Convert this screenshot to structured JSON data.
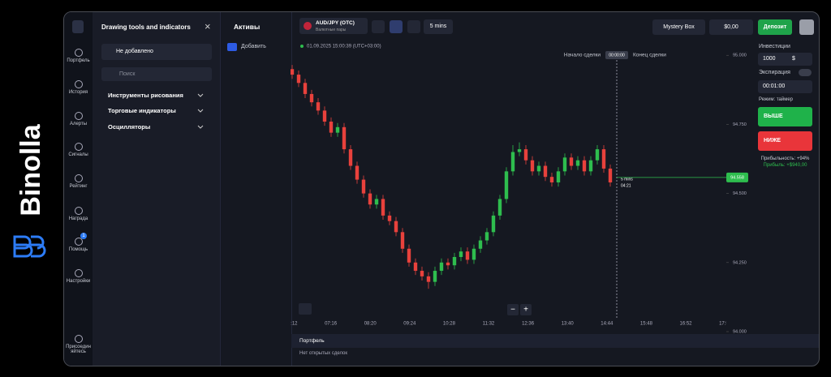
{
  "brand": "Binolla",
  "sidebar": {
    "items": [
      {
        "label": "Портфель"
      },
      {
        "label": "История"
      },
      {
        "label": "Алерты"
      },
      {
        "label": "Сигналы"
      },
      {
        "label": "Рейтинг"
      },
      {
        "label": "Награда"
      },
      {
        "label": "Помощь"
      },
      {
        "label": "Настройки"
      },
      {
        "label": "Присоединяйтесь"
      }
    ],
    "help_badge": 1
  },
  "drawing_panel": {
    "title": "Drawing tools and indicators",
    "close": "×",
    "status": "Не добавлено",
    "search_placeholder": "Поиск",
    "sections": [
      "Инструменты рисования",
      "Торговые индикаторы",
      "Осцилляторы"
    ]
  },
  "assets_panel": {
    "title": "Активы",
    "add": "Добавить"
  },
  "topbar": {
    "asset": "AUD/JPY (OTC)",
    "asset_type": "Валютные пары",
    "timeframe": "5 mins",
    "mystery_box": "Mystery Box",
    "balance": "$0,00",
    "deposit": "Депозит"
  },
  "chart": {
    "type": "candlestick",
    "timestamp": "01.09.2025 15:00:39 (UTC+03:00)",
    "deal_start": "Начало сделки",
    "deal_timer": "00:00:00",
    "deal_end": "Конец сделки",
    "countdown": "04:21",
    "zoom_out": "−",
    "zoom_in": "+",
    "up_color": "#2ebd4e",
    "down_color": "#e8413c",
    "ylim": [
      94.0,
      95.03
    ],
    "yticks": [
      {
        "value": 95,
        "label": "95.000"
      },
      {
        "value": 94.75,
        "label": "94.750"
      },
      {
        "value": 94.5,
        "label": "94.500"
      },
      {
        "value": 94.25,
        "label": "94.250"
      },
      {
        "value": 94,
        "label": "94.000"
      }
    ],
    "x_labels": [
      "06:12",
      "07:16",
      "08:20",
      "09:24",
      "10:28",
      "11:32",
      "12:36",
      "13:40",
      "14:44",
      "15:48",
      "16:52",
      "17:56"
    ],
    "current_price": {
      "value": 94.558,
      "label": "94.558"
    },
    "candles": [
      {
        "open": 94.95,
        "high": 94.965,
        "low": 94.915,
        "close": 94.93
      },
      {
        "open": 94.93,
        "high": 94.945,
        "low": 94.885,
        "close": 94.9
      },
      {
        "open": 94.9,
        "high": 94.915,
        "low": 94.845,
        "close": 94.86
      },
      {
        "open": 94.86,
        "high": 94.875,
        "low": 94.815,
        "close": 94.83
      },
      {
        "open": 94.83,
        "high": 94.845,
        "low": 94.785,
        "close": 94.8
      },
      {
        "open": 94.8,
        "high": 94.815,
        "low": 94.745,
        "close": 94.76
      },
      {
        "open": 94.76,
        "high": 94.775,
        "low": 94.705,
        "close": 94.72
      },
      {
        "open": 94.72,
        "high": 94.755,
        "low": 94.705,
        "close": 94.74
      },
      {
        "open": 94.74,
        "high": 94.755,
        "low": 94.645,
        "close": 94.66
      },
      {
        "open": 94.66,
        "high": 94.675,
        "low": 94.585,
        "close": 94.6
      },
      {
        "open": 94.6,
        "high": 94.615,
        "low": 94.535,
        "close": 94.55
      },
      {
        "open": 94.55,
        "high": 94.565,
        "low": 94.485,
        "close": 94.5
      },
      {
        "open": 94.5,
        "high": 94.515,
        "low": 94.445,
        "close": 94.46
      },
      {
        "open": 94.46,
        "high": 94.495,
        "low": 94.445,
        "close": 94.48
      },
      {
        "open": 94.48,
        "high": 94.495,
        "low": 94.405,
        "close": 94.42
      },
      {
        "open": 94.42,
        "high": 94.435,
        "low": 94.385,
        "close": 94.4
      },
      {
        "open": 94.4,
        "high": 94.415,
        "low": 94.345,
        "close": 94.36
      },
      {
        "open": 94.36,
        "high": 94.375,
        "low": 94.285,
        "close": 94.3
      },
      {
        "open": 94.3,
        "high": 94.315,
        "low": 94.235,
        "close": 94.25
      },
      {
        "open": 94.25,
        "high": 94.265,
        "low": 94.205,
        "close": 94.22
      },
      {
        "open": 94.22,
        "high": 94.235,
        "low": 94.185,
        "close": 94.2
      },
      {
        "open": 94.2,
        "high": 94.215,
        "low": 94.155,
        "close": 94.18
      },
      {
        "open": 94.18,
        "high": 94.235,
        "low": 94.165,
        "close": 94.22
      },
      {
        "open": 94.22,
        "high": 94.265,
        "low": 94.205,
        "close": 94.25
      },
      {
        "open": 94.25,
        "high": 94.265,
        "low": 94.225,
        "close": 94.24
      },
      {
        "open": 94.24,
        "high": 94.285,
        "low": 94.225,
        "close": 94.27
      },
      {
        "open": 94.27,
        "high": 94.305,
        "low": 94.255,
        "close": 94.29
      },
      {
        "open": 94.29,
        "high": 94.305,
        "low": 94.245,
        "close": 94.26
      },
      {
        "open": 94.26,
        "high": 94.315,
        "low": 94.245,
        "close": 94.3
      },
      {
        "open": 94.3,
        "high": 94.345,
        "low": 94.285,
        "close": 94.33
      },
      {
        "open": 94.33,
        "high": 94.375,
        "low": 94.315,
        "close": 94.36
      },
      {
        "open": 94.36,
        "high": 94.435,
        "low": 94.345,
        "close": 94.42
      },
      {
        "open": 94.42,
        "high": 94.495,
        "low": 94.405,
        "close": 94.48
      },
      {
        "open": 94.48,
        "high": 94.595,
        "low": 94.465,
        "close": 94.58
      },
      {
        "open": 94.58,
        "high": 94.675,
        "low": 94.565,
        "close": 94.65
      },
      {
        "open": 94.65,
        "high": 94.685,
        "low": 94.635,
        "close": 94.66
      },
      {
        "open": 94.66,
        "high": 94.675,
        "low": 94.605,
        "close": 94.62
      },
      {
        "open": 94.62,
        "high": 94.635,
        "low": 94.565,
        "close": 94.58
      },
      {
        "open": 94.58,
        "high": 94.615,
        "low": 94.565,
        "close": 94.6
      },
      {
        "open": 94.6,
        "high": 94.615,
        "low": 94.545,
        "close": 94.56
      },
      {
        "open": 94.56,
        "high": 94.575,
        "low": 94.525,
        "close": 94.54
      },
      {
        "open": 94.54,
        "high": 94.595,
        "low": 94.525,
        "close": 94.58
      },
      {
        "open": 94.58,
        "high": 94.645,
        "low": 94.565,
        "close": 94.63
      },
      {
        "open": 94.63,
        "high": 94.645,
        "low": 94.585,
        "close": 94.6
      },
      {
        "open": 94.6,
        "high": 94.635,
        "low": 94.585,
        "close": 94.62
      },
      {
        "open": 94.62,
        "high": 94.635,
        "low": 94.565,
        "close": 94.58
      },
      {
        "open": 94.58,
        "high": 94.635,
        "low": 94.565,
        "close": 94.62
      },
      {
        "open": 94.62,
        "high": 94.675,
        "low": 94.605,
        "close": 94.66
      },
      {
        "open": 94.66,
        "high": 94.675,
        "low": 94.575,
        "close": 94.59
      },
      {
        "open": 94.59,
        "high": 94.605,
        "low": 94.525,
        "close": 94.54
      }
    ]
  },
  "trade": {
    "investment_label": "Инвестиции",
    "investment": 1000,
    "currency": "$",
    "expiration_label": "Экспирация",
    "expiration": "00:01:00",
    "mode": "Режим: таймер",
    "up": "ВЫШЕ",
    "down": "НИЖЕ",
    "payout": "Прибыльность: +94%",
    "profit": "Прибыль: +$940,00"
  },
  "portfolio": {
    "title": "Портфель",
    "empty": "Нет открытых сделок"
  }
}
